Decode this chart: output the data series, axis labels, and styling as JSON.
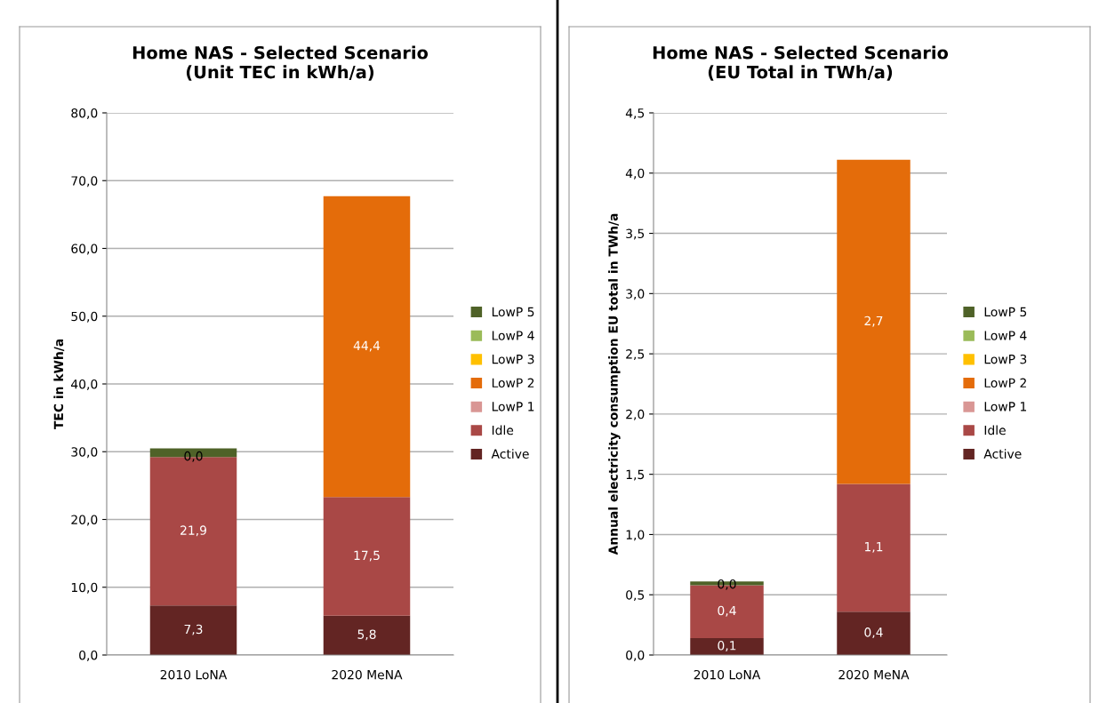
{
  "chart_data": [
    {
      "type": "bar",
      "stacked": true,
      "title": "Home NAS - Selected Scenario\n(Unit TEC in kWh/a)",
      "ylabel": "TEC in kWh/a",
      "categories": [
        "2010 LoNA",
        "2020 MeNA"
      ],
      "ylim": [
        0,
        80
      ],
      "yticks": [
        {
          "value": 0,
          "label": "0,0"
        },
        {
          "value": 10,
          "label": "10,0"
        },
        {
          "value": 20,
          "label": "20,0"
        },
        {
          "value": 30,
          "label": "30,0"
        },
        {
          "value": 40,
          "label": "40,0"
        },
        {
          "value": 50,
          "label": "50,0"
        },
        {
          "value": 60,
          "label": "60,0"
        },
        {
          "value": 70,
          "label": "70,0"
        },
        {
          "value": 80,
          "label": "80,0"
        }
      ],
      "grid": "y",
      "legend": "right",
      "series": [
        {
          "name": "Active",
          "color": "#632523",
          "values": [
            7.3,
            5.8
          ],
          "value_labels": [
            "7,3",
            "5,8"
          ]
        },
        {
          "name": "Idle",
          "color": "#a94846",
          "values": [
            21.9,
            17.5
          ],
          "value_labels": [
            "21,9",
            "17,5"
          ]
        },
        {
          "name": "LowP 1",
          "color": "#d99694",
          "values": [
            0,
            0
          ],
          "value_labels": [
            "0,0",
            null
          ]
        },
        {
          "name": "LowP 2",
          "color": "#e46c0a",
          "values": [
            0,
            44.4
          ],
          "value_labels": [
            null,
            "44,4"
          ]
        },
        {
          "name": "LowP 3",
          "color": "#ffc000",
          "values": [
            0,
            0
          ],
          "value_labels": [
            null,
            null
          ]
        },
        {
          "name": "LowP 4",
          "color": "#9bbb59",
          "values": [
            0,
            0
          ],
          "value_labels": [
            null,
            null
          ]
        },
        {
          "name": "LowP 5",
          "color": "#4f6228",
          "values": [
            1.3,
            0
          ],
          "value_labels": [
            null,
            null
          ]
        }
      ]
    },
    {
      "type": "bar",
      "stacked": true,
      "title": "Home NAS - Selected Scenario\n(EU Total in TWh/a)",
      "ylabel": "Annual electricity consumption EU total in TWh/a",
      "categories": [
        "2010 LoNA",
        "2020 MeNA"
      ],
      "ylim": [
        0,
        4.5
      ],
      "yticks": [
        {
          "value": 0,
          "label": "0,0"
        },
        {
          "value": 0.5,
          "label": "0,5"
        },
        {
          "value": 1,
          "label": "1,0"
        },
        {
          "value": 1.5,
          "label": "1,5"
        },
        {
          "value": 2,
          "label": "2,0"
        },
        {
          "value": 2.5,
          "label": "2,5"
        },
        {
          "value": 3,
          "label": "3,0"
        },
        {
          "value": 3.5,
          "label": "3,5"
        },
        {
          "value": 4,
          "label": "4,0"
        },
        {
          "value": 4.5,
          "label": "4,5"
        }
      ],
      "grid": "y",
      "legend": "right",
      "series": [
        {
          "name": "Active",
          "color": "#632523",
          "values": [
            0.14,
            0.36
          ],
          "value_labels": [
            "0,1",
            "0,4"
          ]
        },
        {
          "name": "Idle",
          "color": "#a94846",
          "values": [
            0.44,
            1.06
          ],
          "value_labels": [
            "0,4",
            "1,1"
          ]
        },
        {
          "name": "LowP 1",
          "color": "#d99694",
          "values": [
            0,
            0
          ],
          "value_labels": [
            "0,0",
            null
          ]
        },
        {
          "name": "LowP 2",
          "color": "#e46c0a",
          "values": [
            0,
            2.69
          ],
          "value_labels": [
            null,
            "2,7"
          ]
        },
        {
          "name": "LowP 3",
          "color": "#ffc000",
          "values": [
            0,
            0
          ],
          "value_labels": [
            null,
            null
          ]
        },
        {
          "name": "LowP 4",
          "color": "#9bbb59",
          "values": [
            0,
            0
          ],
          "value_labels": [
            null,
            null
          ]
        },
        {
          "name": "LowP 5",
          "color": "#4f6228",
          "values": [
            0.03,
            0
          ],
          "value_labels": [
            null,
            null
          ]
        }
      ]
    }
  ]
}
